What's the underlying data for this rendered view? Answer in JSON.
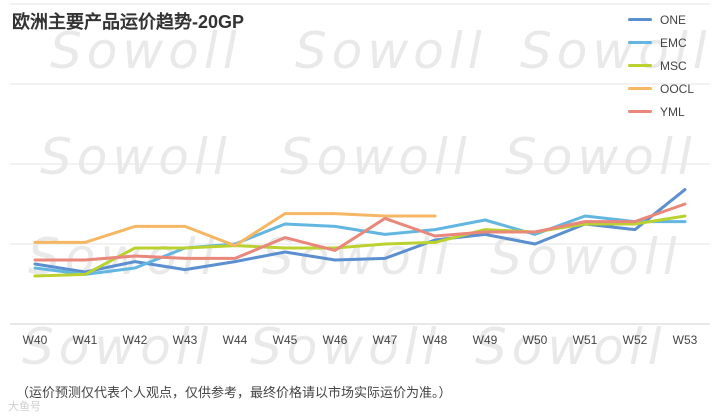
{
  "chart_data": {
    "type": "line",
    "title": "欧洲主要产品运价趋势-20GP",
    "xlabel": "",
    "ylabel": "",
    "categories": [
      "W40",
      "W41",
      "W42",
      "W43",
      "W44",
      "W45",
      "W46",
      "W47",
      "W48",
      "W49",
      "W50",
      "W51",
      "W52",
      "W53"
    ],
    "ylim": [
      0,
      4
    ],
    "grid": true,
    "legend_position": "top-right",
    "series": [
      {
        "name": "ONE",
        "color": "#5B8FD0",
        "values": [
          0.75,
          0.65,
          0.78,
          0.68,
          0.78,
          0.9,
          0.8,
          0.82,
          1.05,
          1.12,
          1.0,
          1.25,
          1.18,
          1.68
        ]
      },
      {
        "name": "EMC",
        "color": "#62B6E0",
        "values": [
          0.7,
          0.62,
          0.7,
          0.95,
          1.0,
          1.25,
          1.22,
          1.12,
          1.18,
          1.3,
          1.12,
          1.35,
          1.28,
          1.28
        ]
      },
      {
        "name": "MSC",
        "color": "#BBD12F",
        "values": [
          0.6,
          0.62,
          0.95,
          0.95,
          0.98,
          0.95,
          0.95,
          1.0,
          1.02,
          1.18,
          1.15,
          1.25,
          1.25,
          1.35
        ]
      },
      {
        "name": "OOCL",
        "color": "#F5B763",
        "values": [
          1.02,
          1.02,
          1.22,
          1.22,
          0.98,
          1.38,
          1.38,
          1.35,
          1.35,
          null,
          null,
          null,
          null,
          null
        ]
      },
      {
        "name": "YML",
        "color": "#E9877A",
        "values": [
          0.8,
          0.8,
          0.85,
          0.82,
          0.82,
          1.08,
          0.92,
          1.32,
          1.1,
          1.15,
          1.15,
          1.28,
          1.28,
          1.5
        ]
      }
    ]
  },
  "footnote": "（运价预测仅代表个人观点，仅供参考，最终价格请以市场实际运价为准。）",
  "watermark": "Sowoll",
  "brand_mark": "大鱼号"
}
